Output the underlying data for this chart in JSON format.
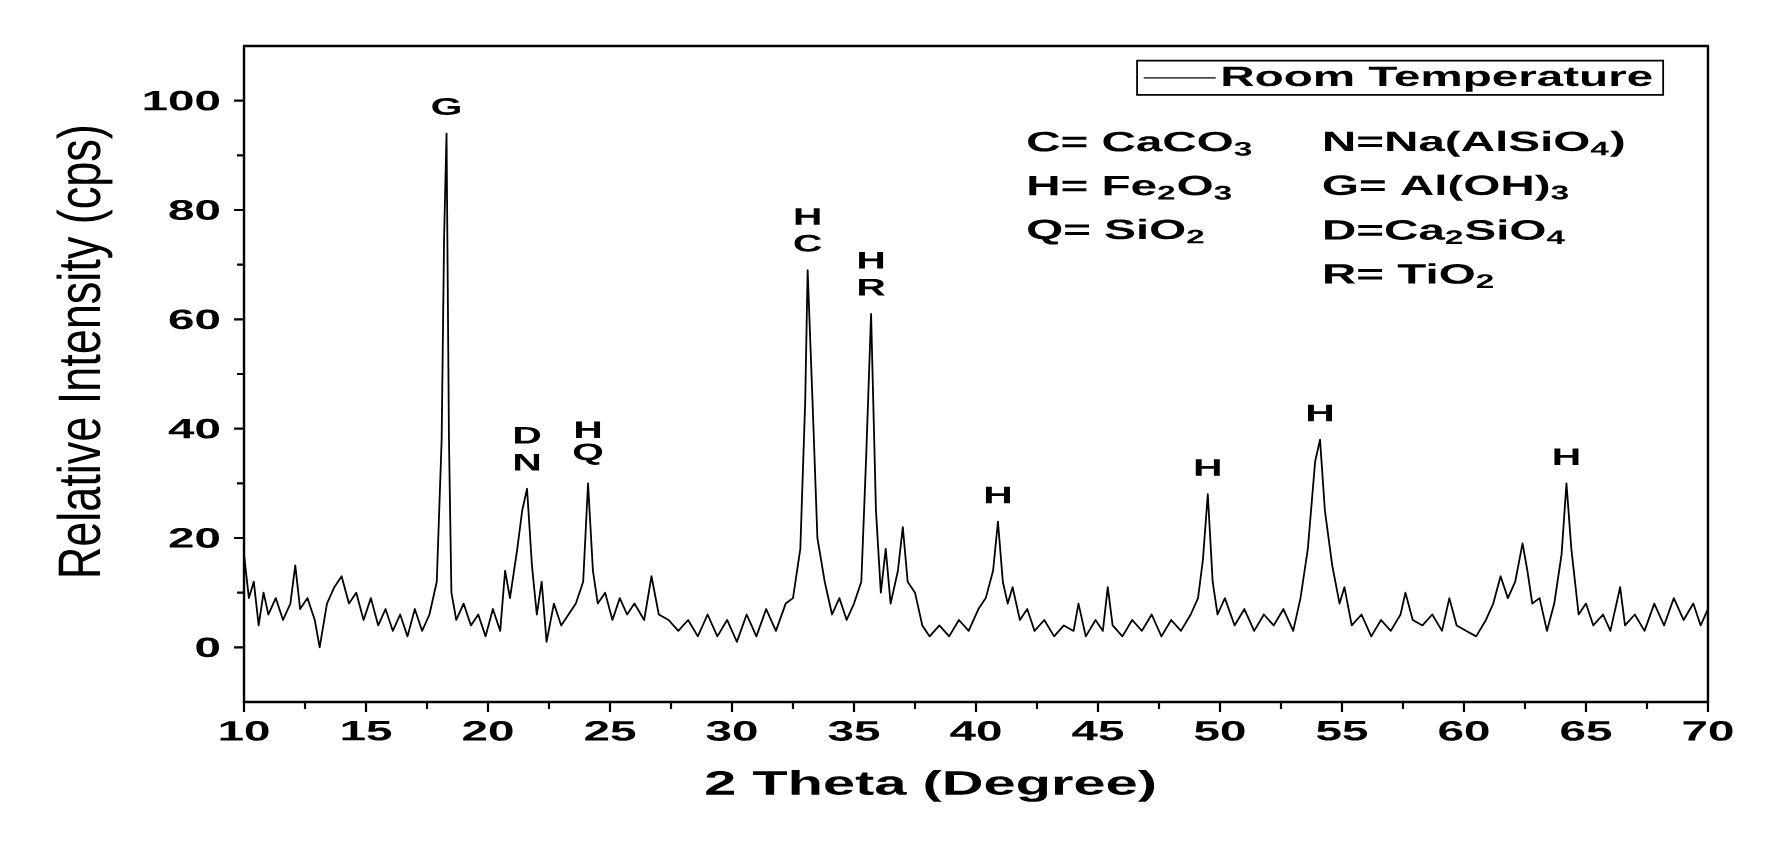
{
  "chart_data": {
    "type": "line",
    "xlabel": "2 Theta (Degree)",
    "ylabel": "Relative Intensity (cps)",
    "xlim": [
      10,
      70
    ],
    "ylim": [
      -10,
      110
    ],
    "xticks": [
      10,
      {
        "value": 12.5,
        "label": null
      },
      15,
      {
        "value": 17.5,
        "label": null
      },
      20,
      {
        "value": 22.5,
        "label": null
      },
      25,
      {
        "value": 27.5,
        "label": null
      },
      30,
      {
        "value": 32.5,
        "label": null
      },
      35,
      {
        "value": 37.5,
        "label": null
      },
      40,
      {
        "value": 42.5,
        "label": null
      },
      45,
      {
        "value": 47.5,
        "label": null
      },
      50,
      {
        "value": 52.5,
        "label": null
      },
      55,
      {
        "value": 57.5,
        "label": null
      },
      60,
      {
        "value": 62.5,
        "label": null
      },
      65,
      {
        "value": 67.5,
        "label": null
      },
      70
    ],
    "yticks": [
      0,
      {
        "value": 10,
        "label": null
      },
      20,
      {
        "value": 30,
        "label": null
      },
      40,
      {
        "value": 50,
        "label": null
      },
      60,
      {
        "value": 70,
        "label": null
      },
      80,
      {
        "value": 90,
        "label": null
      },
      100
    ],
    "legend": "top right",
    "x": [
      10.0,
      10.2,
      10.4,
      10.6,
      10.8,
      11.0,
      11.3,
      11.6,
      11.9,
      12.1,
      12.3,
      12.6,
      12.9,
      13.1,
      13.4,
      13.7,
      14.0,
      14.3,
      14.6,
      14.9,
      15.2,
      15.5,
      15.8,
      16.1,
      16.4,
      16.7,
      17.0,
      17.3,
      17.6,
      17.9,
      18.1,
      18.2,
      18.3,
      18.4,
      18.5,
      18.7,
      19.0,
      19.3,
      19.6,
      19.9,
      20.2,
      20.5,
      20.7,
      20.9,
      21.2,
      21.4,
      21.6,
      21.8,
      22.0,
      22.2,
      22.4,
      22.7,
      23.0,
      23.3,
      23.6,
      23.9,
      24.1,
      24.3,
      24.5,
      24.8,
      25.1,
      25.4,
      25.7,
      26.0,
      26.4,
      26.7,
      27.0,
      27.4,
      27.8,
      28.2,
      28.6,
      29.0,
      29.4,
      29.8,
      30.2,
      30.6,
      31.0,
      31.4,
      31.8,
      32.2,
      32.5,
      32.8,
      33.0,
      33.1,
      33.3,
      33.5,
      33.8,
      34.1,
      34.4,
      34.7,
      35.0,
      35.3,
      35.5,
      35.7,
      35.9,
      36.1,
      36.3,
      36.5,
      36.8,
      37.0,
      37.2,
      37.5,
      37.8,
      38.1,
      38.5,
      38.9,
      39.3,
      39.7,
      40.1,
      40.4,
      40.7,
      40.9,
      41.1,
      41.3,
      41.5,
      41.8,
      42.1,
      42.4,
      42.8,
      43.2,
      43.6,
      44.0,
      44.2,
      44.5,
      44.9,
      45.2,
      45.4,
      45.6,
      46.0,
      46.4,
      46.8,
      47.2,
      47.6,
      48.0,
      48.4,
      48.8,
      49.1,
      49.3,
      49.5,
      49.7,
      49.9,
      50.2,
      50.6,
      51.0,
      51.4,
      51.8,
      52.2,
      52.6,
      53.0,
      53.3,
      53.6,
      53.9,
      54.1,
      54.3,
      54.6,
      54.9,
      55.1,
      55.4,
      55.8,
      56.2,
      56.6,
      57.0,
      57.4,
      57.6,
      57.9,
      58.3,
      58.7,
      59.1,
      59.4,
      59.7,
      60.1,
      60.5,
      60.9,
      61.2,
      61.5,
      61.8,
      62.1,
      62.4,
      62.6,
      62.8,
      63.1,
      63.4,
      63.7,
      64.0,
      64.2,
      64.4,
      64.7,
      65.0,
      65.3,
      65.7,
      66.0,
      66.4,
      66.6,
      67.0,
      67.4,
      67.8,
      68.2,
      68.6,
      69.0,
      69.4,
      69.7,
      70.0
    ],
    "series": [
      {
        "name": "Room Temperature",
        "color": "#000000",
        "values": [
          17,
          9,
          12,
          4,
          10,
          6,
          9,
          5,
          8,
          15,
          7,
          9,
          5,
          0,
          8,
          11,
          13,
          8,
          10,
          5,
          9,
          4,
          7,
          3,
          6,
          2,
          7,
          3,
          6,
          12,
          38,
          75,
          94,
          38,
          10,
          5,
          8,
          4,
          6,
          2,
          7,
          3,
          14,
          9,
          18,
          25,
          29,
          15,
          6,
          12,
          1,
          8,
          4,
          6,
          8,
          12,
          30,
          14,
          8,
          10,
          5,
          9,
          6,
          8,
          5,
          13,
          6,
          5,
          3,
          5,
          2,
          6,
          2,
          5,
          1,
          6,
          2,
          7,
          3,
          8,
          9,
          18,
          45,
          69,
          45,
          20,
          12,
          6,
          9,
          5,
          8,
          12,
          35,
          61,
          25,
          10,
          18,
          8,
          14,
          22,
          12,
          10,
          4,
          2,
          4,
          2,
          5,
          3,
          7,
          9,
          14,
          23,
          12,
          8,
          11,
          5,
          7,
          3,
          5,
          2,
          4,
          3,
          8,
          2,
          5,
          3,
          11,
          4,
          2,
          5,
          3,
          6,
          2,
          5,
          3,
          6,
          9,
          16,
          28,
          12,
          6,
          9,
          4,
          7,
          3,
          6,
          4,
          7,
          3,
          9,
          18,
          34,
          38,
          25,
          15,
          8,
          11,
          4,
          6,
          2,
          5,
          3,
          6,
          10,
          5,
          4,
          6,
          3,
          9,
          4,
          3,
          2,
          5,
          8,
          13,
          9,
          12,
          19,
          14,
          8,
          9,
          3,
          8,
          17,
          30,
          18,
          6,
          8,
          4,
          6,
          3,
          11,
          4,
          6,
          3,
          8,
          4,
          9,
          5,
          8,
          4,
          7
        ]
      }
    ],
    "annotations": [
      {
        "text": "G",
        "x": 18.3,
        "y": 94
      },
      {
        "text": "N",
        "x": 21.6,
        "y": 29
      },
      {
        "text": "D",
        "x": 21.6,
        "y": 29
      },
      {
        "text": "Q",
        "x": 24.1,
        "y": 30
      },
      {
        "text": "H",
        "x": 24.1,
        "y": 30
      },
      {
        "text": "C",
        "x": 33.1,
        "y": 69
      },
      {
        "text": "H",
        "x": 33.1,
        "y": 69
      },
      {
        "text": "R",
        "x": 35.7,
        "y": 61
      },
      {
        "text": "H",
        "x": 35.7,
        "y": 61
      },
      {
        "text": "H",
        "x": 40.9,
        "y": 23
      },
      {
        "text": "H",
        "x": 49.5,
        "y": 28
      },
      {
        "text": "H",
        "x": 54.1,
        "y": 38
      },
      {
        "text": "H",
        "x": 64.2,
        "y": 30
      },
      "C= CaCO$_{3}$",
      "H= Fe$_{2}$O$_{3}$",
      "Q= SiO$_{2}$",
      "N=Na(AlSiO$_{4}$)",
      "G= Al(OH)$_{3}$",
      "D=Ca$_{2}$SiO$_{4}$",
      "R= TiO$_{2}$"
    ]
  }
}
